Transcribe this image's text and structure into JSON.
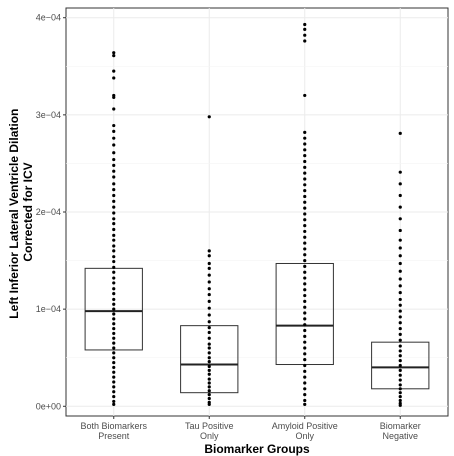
{
  "chart_data": {
    "type": "boxplot",
    "xlabel": "Biomarker Groups",
    "ylabel": [
      "Left Inferior Lateral Ventricle Dilation",
      "Corrected for ICV"
    ],
    "ylim": [
      -1e-05,
      0.00041
    ],
    "yticks": [
      {
        "value": 0,
        "label": "0e+00"
      },
      {
        "value": 0.0001,
        "label": "1e−04"
      },
      {
        "value": 0.0002,
        "label": "2e−04"
      },
      {
        "value": 0.0003,
        "label": "3e−04"
      },
      {
        "value": 0.0004,
        "label": "4e−04"
      }
    ],
    "grid": true,
    "groups": [
      {
        "label": [
          "Both Biomarkers",
          "Present"
        ],
        "box": {
          "q1": 5.8e-05,
          "median": 9.8e-05,
          "q3": 0.000142
        },
        "points": [
          0.000364,
          0.000361,
          0.000345,
          0.000338,
          0.00032,
          0.000318,
          0.000306,
          0.000289,
          0.000283,
          0.000276,
          0.000269,
          0.000261,
          0.000254,
          0.000248,
          0.000242,
          0.000236,
          0.000229,
          0.000223,
          0.000217,
          0.000211,
          0.000205,
          0.000199,
          0.000193,
          0.000188,
          0.000182,
          0.000176,
          0.000171,
          0.000165,
          0.00016,
          0.000154,
          0.000149,
          0.000143,
          0.000138,
          0.000132,
          0.000127,
          0.000121,
          0.000116,
          0.00011,
          0.000105,
          0.0001,
          9.5e-05,
          9e-05,
          8.5e-05,
          8e-05,
          7.5e-05,
          7e-05,
          6.5e-05,
          6e-05,
          5.5e-05,
          5e-05,
          4.5e-05,
          4e-05,
          3.5e-05,
          3e-05,
          2.5e-05,
          2e-05,
          1.5e-05,
          1e-05,
          5e-06,
          2e-06
        ]
      },
      {
        "label": [
          "Tau Positive",
          "Only"
        ],
        "box": {
          "q1": 1.4e-05,
          "median": 4.3e-05,
          "q3": 8.3e-05
        },
        "points": [
          0.000298,
          0.00016,
          0.000155,
          0.000147,
          0.000142,
          0.000135,
          0.000128,
          0.000121,
          0.000115,
          0.000108,
          0.000101,
          9.4e-05,
          8.7e-05,
          8.1e-05,
          7.6e-05,
          7e-05,
          6.4e-05,
          6e-05,
          5.5e-05,
          5e-05,
          4.6e-05,
          4.1e-05,
          3.7e-05,
          3.3e-05,
          2.8e-05,
          2.4e-05,
          2e-05,
          1.6e-05,
          1.2e-05,
          8e-06,
          4e-06,
          2e-06
        ]
      },
      {
        "label": [
          "Amyloid Positive",
          "Only"
        ],
        "box": {
          "q1": 4.3e-05,
          "median": 8.3e-05,
          "q3": 0.000147
        },
        "points": [
          0.000393,
          0.000388,
          0.000382,
          0.000376,
          0.00032,
          0.000282,
          0.000276,
          0.00027,
          0.000264,
          0.000258,
          0.000252,
          0.000246,
          0.00024,
          0.000234,
          0.000228,
          0.000222,
          0.000216,
          0.00021,
          0.000204,
          0.000198,
          0.000192,
          0.000186,
          0.00018,
          0.000174,
          0.000168,
          0.000162,
          0.000156,
          0.00015,
          0.000144,
          0.000138,
          0.000132,
          0.000126,
          0.00012,
          0.000114,
          0.000108,
          0.000102,
          9.6e-05,
          9e-05,
          8.4e-05,
          7.8e-05,
          7.2e-05,
          6.6e-05,
          6e-05,
          5.4e-05,
          4.8e-05,
          4.2e-05,
          3.6e-05,
          3e-05,
          2.4e-05,
          1.8e-05,
          1.2e-05,
          6e-06,
          2e-06
        ]
      },
      {
        "label": [
          "Biomarker",
          "Negative"
        ],
        "box": {
          "q1": 1.8e-05,
          "median": 4e-05,
          "q3": 6.6e-05
        },
        "points": [
          0.000281,
          0.000241,
          0.000229,
          0.000217,
          0.000205,
          0.000193,
          0.000181,
          0.000171,
          0.000163,
          0.000155,
          0.000147,
          0.000139,
          0.000131,
          0.000124,
          0.000117,
          0.00011,
          0.000104,
          9.8e-05,
          9.2e-05,
          8.6e-05,
          8e-05,
          7.4e-05,
          6.8e-05,
          6.2e-05,
          5.7e-05,
          5.2e-05,
          4.7e-05,
          4.2e-05,
          3.7e-05,
          3.2e-05,
          2.7e-05,
          2.2e-05,
          1.8e-05,
          1.4e-05,
          1e-05,
          6e-06,
          3e-06,
          1e-06
        ]
      }
    ]
  }
}
